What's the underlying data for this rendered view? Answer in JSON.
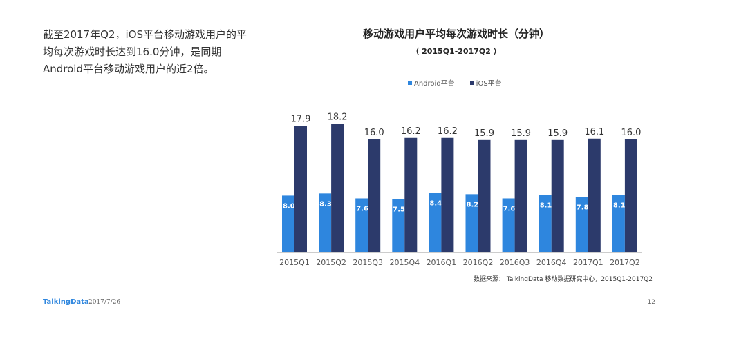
{
  "summary": {
    "line1": "截至2017年Q2，iOS平台移动游戏用户的平",
    "line2": "均每次游戏时长达到16.0分钟，是同期",
    "line3": "Android平台移动游戏用户的近2倍。"
  },
  "chart_data": {
    "type": "bar",
    "title": "移动游戏用户平均每次游戏时长（分钟）",
    "subtitle": "（ 2015Q1-2017Q2 ）",
    "categories": [
      "2015Q1",
      "2015Q2",
      "2015Q3",
      "2015Q4",
      "2016Q1",
      "2016Q2",
      "2016Q3",
      "2016Q4",
      "2017Q1",
      "2017Q2"
    ],
    "series": [
      {
        "name": "Android平台",
        "color": "#2e86de",
        "values": [
          8.0,
          8.3,
          7.6,
          7.5,
          8.4,
          8.2,
          7.6,
          8.1,
          7.8,
          8.1
        ]
      },
      {
        "name": "iOS平台",
        "color": "#2c3a6b",
        "values": [
          17.9,
          18.2,
          16.0,
          16.2,
          16.2,
          15.9,
          15.9,
          15.9,
          16.1,
          16.0
        ]
      }
    ],
    "legend_position": "top",
    "grid": false
  },
  "source_note": "数据来源： TalkingData 移动数据研究中心，2015Q1-2017Q2",
  "footer": {
    "brand": "TalkingData",
    "date": "2017/7/26",
    "page": "12"
  }
}
